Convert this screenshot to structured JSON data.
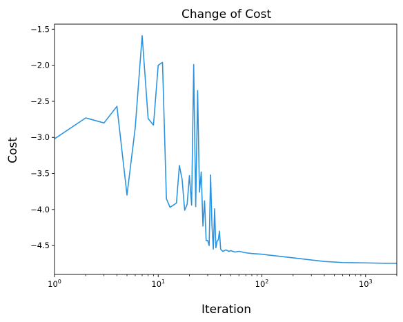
{
  "chart_data": {
    "type": "line",
    "title": "Change of Cost",
    "xlabel": "Iteration",
    "ylabel": "Cost",
    "xscale": "log",
    "xlim": [
      1,
      2000
    ],
    "ylim": [
      -4.9,
      -1.43
    ],
    "grid": false,
    "line_color": "#2a94e0",
    "x_ticks": [
      {
        "value": 1,
        "base": "10",
        "exp": "0"
      },
      {
        "value": 10,
        "base": "10",
        "exp": "1"
      },
      {
        "value": 100,
        "base": "10",
        "exp": "2"
      },
      {
        "value": 1000,
        "base": "10",
        "exp": "3"
      }
    ],
    "y_ticks": [
      {
        "value": -1.5,
        "label": "−1.5"
      },
      {
        "value": -2.0,
        "label": "−2.0"
      },
      {
        "value": -2.5,
        "label": "−2.5"
      },
      {
        "value": -3.0,
        "label": "−3.0"
      },
      {
        "value": -3.5,
        "label": "−3.5"
      },
      {
        "value": -4.0,
        "label": "−4.0"
      },
      {
        "value": -4.5,
        "label": "−4.5"
      }
    ],
    "series": [
      {
        "x": [
          1,
          2,
          3,
          4,
          5,
          6,
          7,
          8,
          9,
          10,
          11,
          12,
          13,
          14,
          15,
          16,
          17,
          18,
          19,
          20,
          21,
          22,
          23,
          24,
          25,
          26,
          27,
          28,
          29,
          30,
          31,
          32,
          33,
          34,
          35,
          36,
          37,
          38,
          39,
          40,
          42,
          45,
          48,
          50,
          55,
          60,
          70,
          80,
          100,
          150,
          200,
          300,
          400,
          600,
          1000,
          1500,
          2000
        ],
        "y": [
          -3.02,
          -2.73,
          -2.8,
          -2.57,
          -3.8,
          -2.87,
          -1.59,
          -2.74,
          -2.83,
          -2.0,
          -1.96,
          -3.85,
          -3.97,
          -3.94,
          -3.91,
          -3.39,
          -3.58,
          -4.01,
          -3.93,
          -3.53,
          -3.94,
          -1.99,
          -3.96,
          -2.35,
          -3.76,
          -3.48,
          -4.23,
          -3.88,
          -4.43,
          -4.43,
          -4.5,
          -3.52,
          -4.22,
          -4.55,
          -3.99,
          -4.53,
          -4.44,
          -4.42,
          -4.3,
          -4.55,
          -4.58,
          -4.56,
          -4.58,
          -4.57,
          -4.59,
          -4.58,
          -4.6,
          -4.61,
          -4.62,
          -4.65,
          -4.67,
          -4.7,
          -4.72,
          -4.735,
          -4.74,
          -4.745,
          -4.745
        ]
      }
    ]
  }
}
